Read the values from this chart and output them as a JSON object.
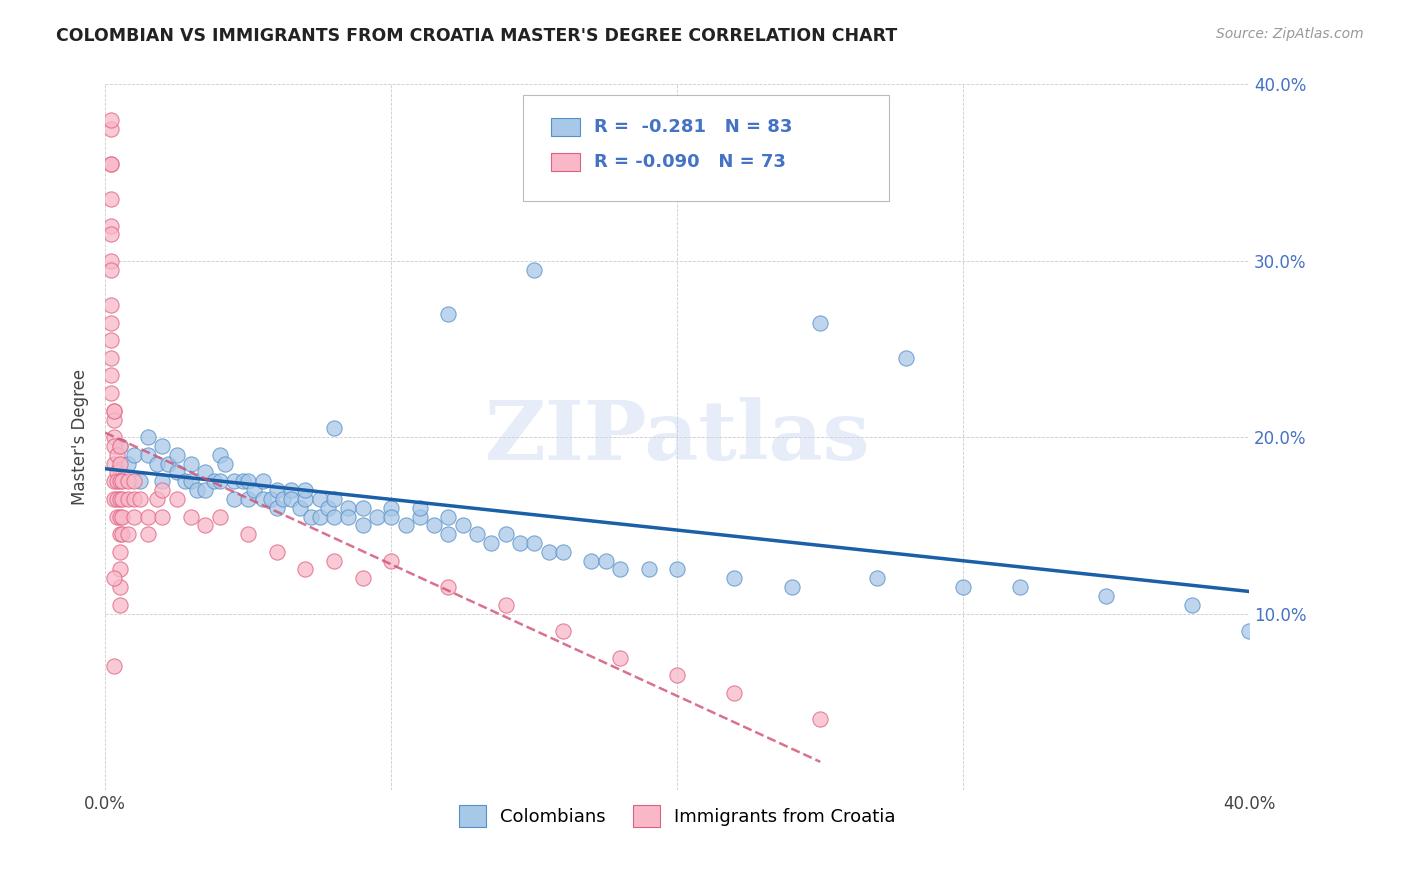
{
  "title": "COLOMBIAN VS IMMIGRANTS FROM CROATIA MASTER'S DEGREE CORRELATION CHART",
  "source": "Source: ZipAtlas.com",
  "ylabel": "Master's Degree",
  "xlim": [
    0.0,
    0.4
  ],
  "ylim": [
    0.0,
    0.4
  ],
  "legend_bottom_blue": "Colombians",
  "legend_bottom_pink": "Immigrants from Croatia",
  "blue_color": "#a8c8e8",
  "blue_edge_color": "#5590c8",
  "pink_color": "#f8b8c8",
  "pink_edge_color": "#e06080",
  "blue_line_color": "#1a5fa8",
  "pink_line_color": "#d05070",
  "accent_color": "#4472c4",
  "watermark": "ZIPatlas",
  "blue_scatter_x": [
    0.005,
    0.008,
    0.01,
    0.012,
    0.015,
    0.015,
    0.018,
    0.02,
    0.02,
    0.022,
    0.025,
    0.025,
    0.028,
    0.03,
    0.03,
    0.032,
    0.035,
    0.035,
    0.038,
    0.04,
    0.04,
    0.042,
    0.045,
    0.045,
    0.048,
    0.05,
    0.05,
    0.052,
    0.055,
    0.055,
    0.058,
    0.06,
    0.06,
    0.062,
    0.065,
    0.065,
    0.068,
    0.07,
    0.07,
    0.072,
    0.075,
    0.075,
    0.078,
    0.08,
    0.08,
    0.085,
    0.085,
    0.09,
    0.09,
    0.095,
    0.1,
    0.1,
    0.105,
    0.11,
    0.11,
    0.115,
    0.12,
    0.12,
    0.125,
    0.13,
    0.135,
    0.14,
    0.145,
    0.15,
    0.155,
    0.16,
    0.17,
    0.175,
    0.18,
    0.19,
    0.2,
    0.22,
    0.24,
    0.27,
    0.3,
    0.32,
    0.35,
    0.38,
    0.4,
    0.25,
    0.28,
    0.15,
    0.08,
    0.12
  ],
  "blue_scatter_y": [
    0.195,
    0.185,
    0.19,
    0.175,
    0.19,
    0.2,
    0.185,
    0.195,
    0.175,
    0.185,
    0.19,
    0.18,
    0.175,
    0.185,
    0.175,
    0.17,
    0.18,
    0.17,
    0.175,
    0.19,
    0.175,
    0.185,
    0.175,
    0.165,
    0.175,
    0.175,
    0.165,
    0.17,
    0.165,
    0.175,
    0.165,
    0.17,
    0.16,
    0.165,
    0.17,
    0.165,
    0.16,
    0.165,
    0.17,
    0.155,
    0.165,
    0.155,
    0.16,
    0.165,
    0.155,
    0.16,
    0.155,
    0.16,
    0.15,
    0.155,
    0.16,
    0.155,
    0.15,
    0.155,
    0.16,
    0.15,
    0.155,
    0.145,
    0.15,
    0.145,
    0.14,
    0.145,
    0.14,
    0.14,
    0.135,
    0.135,
    0.13,
    0.13,
    0.125,
    0.125,
    0.125,
    0.12,
    0.115,
    0.12,
    0.115,
    0.115,
    0.11,
    0.105,
    0.09,
    0.265,
    0.245,
    0.295,
    0.205,
    0.27
  ],
  "pink_scatter_x": [
    0.002,
    0.002,
    0.002,
    0.002,
    0.002,
    0.002,
    0.002,
    0.002,
    0.003,
    0.003,
    0.003,
    0.003,
    0.003,
    0.003,
    0.003,
    0.004,
    0.004,
    0.004,
    0.004,
    0.004,
    0.005,
    0.005,
    0.005,
    0.005,
    0.005,
    0.005,
    0.005,
    0.005,
    0.005,
    0.005,
    0.006,
    0.006,
    0.006,
    0.006,
    0.008,
    0.008,
    0.008,
    0.01,
    0.01,
    0.01,
    0.012,
    0.015,
    0.015,
    0.018,
    0.02,
    0.02,
    0.025,
    0.03,
    0.035,
    0.04,
    0.05,
    0.06,
    0.07,
    0.08,
    0.09,
    0.1,
    0.12,
    0.14,
    0.16,
    0.18,
    0.2,
    0.22,
    0.25,
    0.002,
    0.002,
    0.002,
    0.002,
    0.002,
    0.002,
    0.002,
    0.003,
    0.003,
    0.003
  ],
  "pink_scatter_y": [
    0.375,
    0.355,
    0.32,
    0.3,
    0.275,
    0.265,
    0.245,
    0.225,
    0.215,
    0.21,
    0.2,
    0.195,
    0.185,
    0.175,
    0.165,
    0.19,
    0.18,
    0.175,
    0.165,
    0.155,
    0.195,
    0.185,
    0.175,
    0.165,
    0.155,
    0.145,
    0.135,
    0.125,
    0.115,
    0.105,
    0.175,
    0.165,
    0.155,
    0.145,
    0.175,
    0.165,
    0.145,
    0.175,
    0.165,
    0.155,
    0.165,
    0.155,
    0.145,
    0.165,
    0.17,
    0.155,
    0.165,
    0.155,
    0.15,
    0.155,
    0.145,
    0.135,
    0.125,
    0.13,
    0.12,
    0.13,
    0.115,
    0.105,
    0.09,
    0.075,
    0.065,
    0.055,
    0.04,
    0.38,
    0.355,
    0.335,
    0.315,
    0.295,
    0.255,
    0.235,
    0.215,
    0.12,
    0.07
  ]
}
